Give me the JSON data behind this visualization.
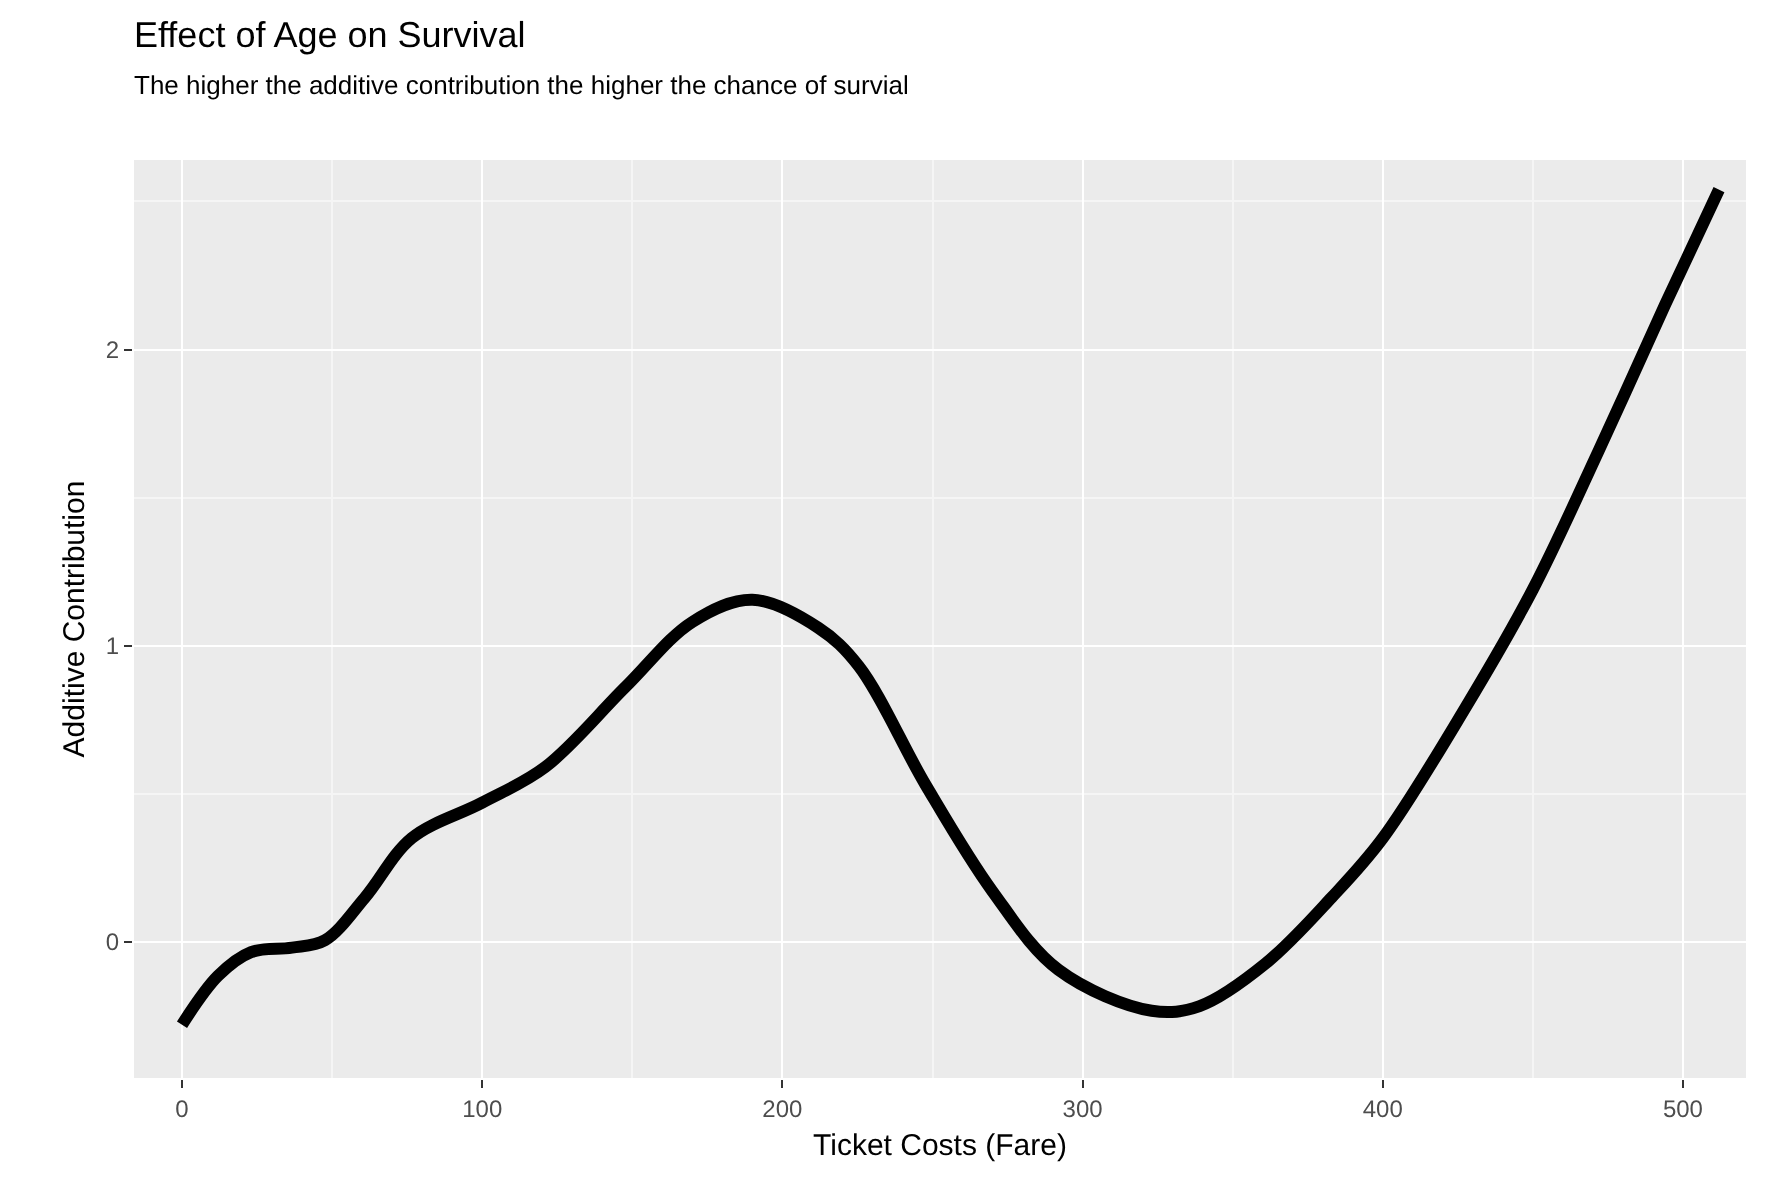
{
  "chart_data": {
    "type": "line",
    "title": "Effect of Age on Survival",
    "subtitle": "The higher the additive contribution the higher the chance of survial",
    "xlabel": "Ticket Costs (Fare)",
    "ylabel": "Additive Contribution",
    "x": [
      0,
      12,
      23,
      36.6,
      47.6,
      61,
      76.5,
      100,
      121,
      147.7,
      170,
      190,
      212,
      225.5,
      247.7,
      270,
      292,
      323,
      339,
      361,
      383,
      400,
      427.5,
      450,
      472,
      494,
      512
    ],
    "series": [
      {
        "color": "#000000",
        "values": [
          -0.28,
          -0.115,
          -0.035,
          -0.02,
          0.005,
          0.15,
          0.35,
          0.47,
          0.59,
          0.86,
          1.08,
          1.155,
          1.06,
          0.93,
          0.53,
          0.17,
          -0.095,
          -0.233,
          -0.217,
          -0.073,
          0.15,
          0.35,
          0.79,
          1.19,
          1.66,
          2.15,
          2.54
        ]
      }
    ],
    "xlim": [
      -16,
      521
    ],
    "ylim": [
      -0.46,
      2.64
    ],
    "xticks": [
      0,
      100,
      200,
      300,
      400,
      500
    ],
    "yticks": [
      0,
      1,
      2
    ],
    "grid": true,
    "marker": "none",
    "line_style": "solid"
  }
}
